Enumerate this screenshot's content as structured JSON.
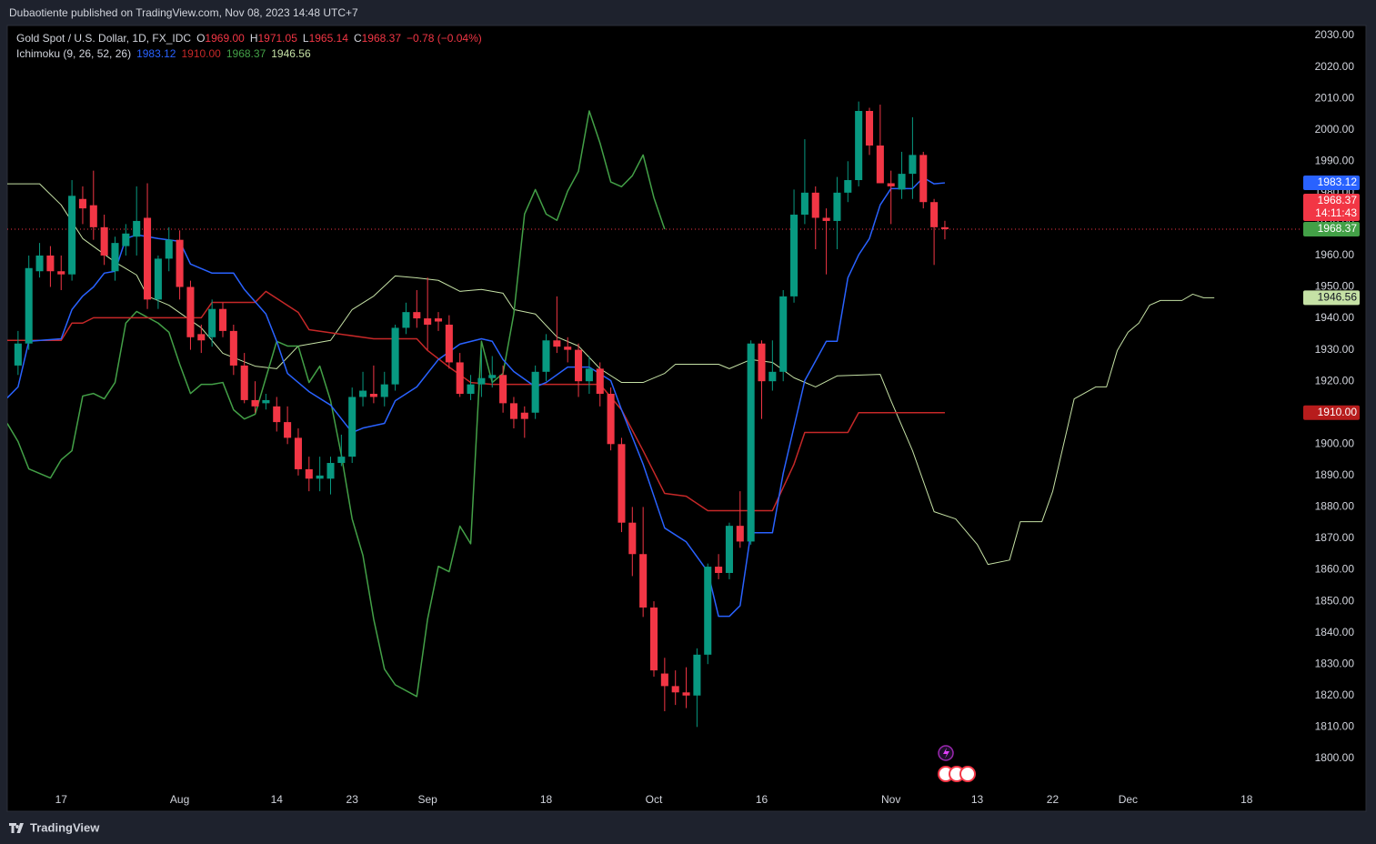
{
  "header": {
    "published": "Dubaotiente published on TradingView.com, Nov 08, 2023 14:48 UTC+7",
    "brand": "TradingView"
  },
  "chart_data": {
    "type": "candlestick",
    "legend": {
      "symbol": "Gold Spot / U.S. Dollar, 1D, FX_IDC",
      "ohlc": [
        {
          "key": "O",
          "value": "1969.00"
        },
        {
          "key": "H",
          "value": "1971.05"
        },
        {
          "key": "L",
          "value": "1965.14"
        },
        {
          "key": "C",
          "value": "1968.37"
        }
      ],
      "change": "−0.78 (−0.04%)",
      "value_color": "#f23645",
      "indicator": "Ichimoku (9, 26, 52, 26)",
      "indicator_values": [
        {
          "value": "1983.12",
          "color": "#2962ff"
        },
        {
          "value": "1910.00",
          "color": "#c62828"
        },
        {
          "value": "1968.37",
          "color": "#43a047"
        },
        {
          "value": "1946.56",
          "color": "#c5e1a5"
        }
      ]
    },
    "up_color": "#089981",
    "down_color": "#f23645",
    "open": [
      1925,
      1932,
      1955,
      1960,
      1955,
      1954,
      1978,
      1976,
      1969,
      1955,
      1963,
      1966,
      1972,
      1946,
      1959,
      1965,
      1950,
      1935,
      1934,
      1943,
      1936,
      1925,
      1914,
      1913,
      1912,
      1907,
      1902,
      1892,
      1889,
      1889,
      1894,
      1896,
      1915,
      1916,
      1915,
      1919,
      1937,
      1942,
      1940,
      1940,
      1938,
      1926,
      1916,
      1919,
      1921,
      1922,
      1913,
      1910,
      1910,
      1923,
      1933,
      1931,
      1930,
      1920,
      1924,
      1916,
      1900,
      1875,
      1865,
      1848,
      1827,
      1823,
      1821,
      1820,
      1833,
      1861,
      1859,
      1874,
      1869,
      1932,
      1920,
      1923,
      1947,
      1973,
      1980,
      1972,
      1971,
      1980,
      1984,
      2006,
      1995,
      1983,
      1981,
      1986,
      1992,
      1977,
      1969.0
    ],
    "high": [
      1936,
      1960,
      1964,
      1963,
      1960,
      1984,
      1982,
      1987,
      1973,
      1966,
      1970,
      1982,
      1983,
      1960,
      1969,
      1968,
      1952,
      1938,
      1946,
      1945,
      1938,
      1929,
      1920,
      1916,
      1915,
      1912,
      1905,
      1896,
      1896,
      1896,
      1903,
      1918,
      1923,
      1925,
      1923,
      1938,
      1945,
      1949,
      1953,
      1942,
      1941,
      1929,
      1922,
      1930,
      1928,
      1925,
      1915,
      1912,
      1925,
      1935,
      1947,
      1934,
      1932,
      1928,
      1926,
      1918,
      1902,
      1880,
      1880,
      1850,
      1832,
      1828,
      1829,
      1835,
      1862,
      1865,
      1875,
      1885,
      1933,
      1933,
      1933,
      1949,
      1981,
      1997,
      1982,
      1975,
      1985,
      1990,
      2009,
      2007,
      2008,
      1987,
      1993,
      2004,
      1993,
      1978,
      1971.05
    ],
    "low": [
      1922,
      1930,
      1953,
      1950,
      1949,
      1952,
      1970,
      1965,
      1957,
      1952,
      1960,
      1960,
      1943,
      1943,
      1955,
      1946,
      1930,
      1929,
      1931,
      1934,
      1922,
      1913,
      1910,
      1911,
      1904,
      1900,
      1890,
      1885,
      1885,
      1884,
      1893,
      1894,
      1912,
      1913,
      1912,
      1917,
      1935,
      1937,
      1930,
      1936,
      1924,
      1915,
      1914,
      1915,
      1918,
      1910,
      1905,
      1902,
      1908,
      1920,
      1929,
      1926,
      1915,
      1916,
      1912,
      1898,
      1872,
      1858,
      1845,
      1826,
      1815,
      1817,
      1816,
      1810,
      1830,
      1857,
      1857,
      1867,
      1868,
      1908,
      1917,
      1920,
      1945,
      1970,
      1962,
      1954,
      1962,
      1977,
      1982,
      1992,
      1983,
      1970,
      1978,
      1978,
      1975,
      1957,
      1965.14
    ],
    "close": [
      1932,
      1956,
      1960,
      1955,
      1954,
      1979,
      1975,
      1969,
      1960,
      1964,
      1967,
      1971,
      1946,
      1959,
      1965,
      1950,
      1934,
      1933,
      1943,
      1936,
      1925,
      1914,
      1912,
      1914,
      1907,
      1902,
      1892,
      1889,
      1890,
      1894,
      1896,
      1915,
      1917,
      1915,
      1919,
      1937,
      1942,
      1940,
      1938,
      1939,
      1926,
      1916,
      1919,
      1921,
      1922,
      1913,
      1908,
      1908,
      1923,
      1933,
      1931,
      1930,
      1920,
      1924,
      1916,
      1900,
      1875,
      1865,
      1848,
      1828,
      1823,
      1821,
      1820,
      1833,
      1861,
      1859,
      1874,
      1869,
      1932,
      1920,
      1923,
      1947,
      1973,
      1980,
      1972,
      1971,
      1980,
      1984,
      2006,
      1995,
      1983,
      1982,
      1986,
      1992,
      1977,
      1969,
      1968.37
    ],
    "lines": [
      {
        "color": "#c5e1a5",
        "width": 1,
        "x": [
          -1,
          2,
          4,
          6,
          9,
          11,
          12,
          14,
          17,
          19,
          22,
          24,
          26,
          29,
          31,
          33,
          35,
          37,
          39,
          41,
          43,
          45,
          46,
          48,
          50,
          52,
          54,
          56,
          58,
          60,
          61,
          63,
          65,
          66,
          68,
          70,
          72,
          74,
          76,
          80,
          81,
          83,
          85,
          87,
          89,
          90,
          92,
          93,
          95,
          96,
          98,
          100,
          101,
          102,
          103,
          104,
          105,
          106,
          108,
          109,
          110,
          111
        ],
        "values": [
          1982.8,
          1982.8,
          1976.1,
          1965.4,
          1957.9,
          1953.8,
          1947.1,
          1944.2,
          1937.0,
          1928.9,
          1924.8,
          1924.0,
          1931.2,
          1933.0,
          1942.8,
          1947.1,
          1953.5,
          1952.9,
          1952.1,
          1948.6,
          1949.2,
          1948.0,
          1942.8,
          1941.4,
          1934.1,
          1931.2,
          1924.0,
          1919.6,
          1919.6,
          1922.5,
          1925.4,
          1925.4,
          1925.4,
          1924.0,
          1926.9,
          1926.0,
          1921.1,
          1918.2,
          1921.7,
          1922.2,
          1913.8,
          1897.9,
          1878.5,
          1876.2,
          1868.1,
          1861.7,
          1863.1,
          1875.3,
          1875.3,
          1884.9,
          1914.4,
          1918.2,
          1918.2,
          1929.8,
          1935.6,
          1938.5,
          1944.2,
          1945.7,
          1945.7,
          1947.7,
          1946.56,
          1946.56
        ]
      },
      {
        "color": "#43a047",
        "width": 1.5,
        "x": [
          -1,
          0,
          1,
          3,
          4,
          5,
          6,
          7,
          8,
          9,
          10,
          11,
          13,
          14,
          15,
          16,
          17,
          18,
          19,
          20,
          21,
          22,
          23,
          24,
          25,
          26,
          27,
          28,
          29,
          30,
          31,
          32,
          33,
          34,
          35,
          37,
          38,
          39,
          40,
          41,
          42,
          43,
          44,
          45,
          46,
          47,
          48,
          49,
          50,
          51,
          52,
          53,
          54,
          55,
          56,
          57,
          58,
          59,
          60
        ],
        "values": [
          1906.6,
          1900.8,
          1892.1,
          1889.2,
          1895.0,
          1897.9,
          1915.3,
          1916.1,
          1914.4,
          1919.6,
          1938.5,
          1942.2,
          1938.5,
          1935.6,
          1925.4,
          1916.1,
          1919.0,
          1919.0,
          1919.6,
          1910.9,
          1908.0,
          1909.5,
          1921.1,
          1932.7,
          1931.2,
          1931.2,
          1919.6,
          1924.8,
          1913.8,
          1896.5,
          1876.2,
          1864.6,
          1844.3,
          1828.4,
          1823.4,
          1819.7,
          1844.3,
          1861.1,
          1859.4,
          1873.9,
          1868.3,
          1932.7,
          1919.6,
          1922.5,
          1941.4,
          1973.2,
          1981.0,
          1973.2,
          1971.2,
          1980.5,
          1986.8,
          2006.0,
          1995.8,
          1983.4,
          1981.9,
          1985.4,
          1992.0,
          1978.4,
          1968.37
        ]
      },
      {
        "color": "#c62828",
        "width": 1.5,
        "x": [
          -1,
          4,
          5,
          6,
          7,
          17,
          18,
          22,
          23,
          26,
          27,
          33,
          37,
          38,
          40,
          42,
          44,
          54,
          56,
          58,
          60,
          62,
          64,
          70,
          72,
          73,
          77,
          78,
          86
        ],
        "values": [
          1933.0,
          1933.0,
          1938.5,
          1938.5,
          1940.2,
          1940.2,
          1945.1,
          1945.1,
          1948.6,
          1941.9,
          1936.4,
          1933.5,
          1933.5,
          1929.8,
          1924.5,
          1919.6,
          1919.0,
          1919.0,
          1910.9,
          1897.9,
          1884.3,
          1883.4,
          1878.8,
          1878.8,
          1893.6,
          1903.7,
          1903.7,
          1910,
          1910
        ]
      },
      {
        "color": "#2962ff",
        "width": 1.5,
        "x": [
          -1,
          0,
          1,
          4,
          5,
          6,
          7,
          8,
          9,
          10,
          11,
          13,
          15,
          16,
          18,
          20,
          21,
          23,
          24,
          25,
          27,
          29,
          31,
          32,
          34,
          35,
          37,
          39,
          41,
          43,
          44,
          45,
          46,
          48,
          49,
          51,
          53,
          55,
          56,
          58,
          60,
          62,
          64,
          65,
          66,
          67,
          68,
          70,
          71,
          73,
          75,
          76,
          77,
          78,
          79,
          80,
          81,
          83,
          84,
          85,
          86
        ],
        "values": [
          1914.7,
          1918.2,
          1932.7,
          1933.5,
          1942.8,
          1947.1,
          1950.0,
          1954.4,
          1955.0,
          1965.4,
          1966.6,
          1965.4,
          1964.5,
          1957.3,
          1954.4,
          1954.4,
          1949.2,
          1941.4,
          1932.7,
          1922.5,
          1916.7,
          1912.4,
          1903.7,
          1905.1,
          1906.6,
          1913.8,
          1918.2,
          1926.9,
          1931.8,
          1933.5,
          1932.7,
          1926.9,
          1923.1,
          1918.2,
          1919.6,
          1924.5,
          1924.5,
          1920.2,
          1910.9,
          1893.6,
          1873.3,
          1868.9,
          1859.4,
          1845.2,
          1845.2,
          1848.6,
          1871.8,
          1871.8,
          1890.7,
          1920.2,
          1932.7,
          1932.7,
          1952.9,
          1960.2,
          1965.4,
          1976.1,
          1981.3,
          1981.3,
          1984.8,
          1982.8,
          1983.12
        ]
      }
    ],
    "xlim": [
      -1,
      119
    ],
    "xticks": [
      {
        "value": 4,
        "label": "17"
      },
      {
        "value": 15,
        "label": "Aug"
      },
      {
        "value": 24,
        "label": "14"
      },
      {
        "value": 31,
        "label": "23"
      },
      {
        "value": 38,
        "label": "Sep"
      },
      {
        "value": 49,
        "label": "18"
      },
      {
        "value": 59,
        "label": "Oct"
      },
      {
        "value": 69,
        "label": "16"
      },
      {
        "value": 81,
        "label": "Nov"
      },
      {
        "value": 89,
        "label": "13"
      },
      {
        "value": 96,
        "label": "22"
      },
      {
        "value": 103,
        "label": "Dec"
      },
      {
        "value": 114,
        "label": "18"
      }
    ],
    "ylim": [
      1790.7,
      2033.2
    ],
    "yticks": [
      {
        "value": 1800,
        "label": "1800.00"
      },
      {
        "value": 1810,
        "label": "1810.00"
      },
      {
        "value": 1820,
        "label": "1820.00"
      },
      {
        "value": 1830,
        "label": "1830.00"
      },
      {
        "value": 1840,
        "label": "1840.00"
      },
      {
        "value": 1850,
        "label": "1850.00"
      },
      {
        "value": 1860,
        "label": "1860.00"
      },
      {
        "value": 1870,
        "label": "1870.00"
      },
      {
        "value": 1880,
        "label": "1880.00"
      },
      {
        "value": 1890,
        "label": "1890.00"
      },
      {
        "value": 1900,
        "label": "1900.00"
      },
      {
        "value": 1910,
        "label": "1910.00"
      },
      {
        "value": 1920,
        "label": "1920.00"
      },
      {
        "value": 1930,
        "label": "1930.00"
      },
      {
        "value": 1940,
        "label": "1940.00"
      },
      {
        "value": 1950,
        "label": "1950.00"
      },
      {
        "value": 1960,
        "label": "1960.00"
      },
      {
        "value": 1970,
        "label": "1970.00"
      },
      {
        "value": 1980,
        "label": "1980.00"
      },
      {
        "value": 1990,
        "label": "1990.00"
      },
      {
        "value": 2000,
        "label": "2000.00"
      },
      {
        "value": 2010,
        "label": "2010.00"
      },
      {
        "value": 2020,
        "label": "2020.00"
      },
      {
        "value": 2030,
        "label": "2030.00"
      }
    ],
    "price_tags": [
      {
        "value": 1983.12,
        "label": "1983.12",
        "color": "#2962ff",
        "text_color": "#ffffff"
      },
      {
        "value": 1968.37,
        "label": "1968.37",
        "color": "#f23645",
        "text_color": "#ffffff",
        "countdown": "14:11:43",
        "line": "dotted"
      },
      {
        "value": 1968.37,
        "label": "1968.37",
        "color": "#43a047",
        "text_color": "#ffffff"
      },
      {
        "value": 1946.56,
        "label": "1946.56",
        "color": "#c5e1a5",
        "text_color": "#131722"
      },
      {
        "value": 1910,
        "label": "1910.00",
        "color": "#b71c1c",
        "text_color": "#ffffff"
      }
    ],
    "grid": false
  }
}
